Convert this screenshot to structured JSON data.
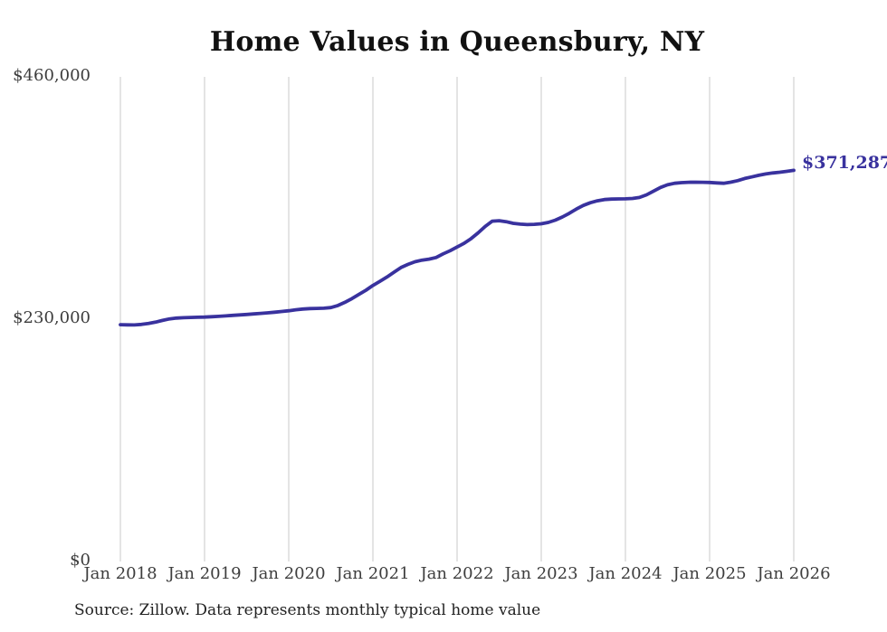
{
  "chart_data": {
    "type": "line",
    "title": "Home Values in Queensbury, NY",
    "xlabel": "",
    "ylabel": "",
    "ylim": [
      0,
      460000
    ],
    "grid": "vertical-only",
    "x_interval": "monthly",
    "x_range": [
      "Jan 2018",
      "Jan 2026"
    ],
    "x_tick_labels": [
      "Jan 2018",
      "Jan 2019",
      "Jan 2020",
      "Jan 2021",
      "Jan 2022",
      "Jan 2023",
      "Jan 2024",
      "Jan 2025",
      "Jan 2026"
    ],
    "y_ticks": [
      {
        "value": 460000,
        "label": "$460,000"
      },
      {
        "value": 230000,
        "label": "$230,000"
      },
      {
        "value": 0,
        "label": "$0"
      }
    ],
    "series": [
      {
        "name": "Typical home value",
        "color": "#39329e",
        "monthly_values": [
          224800,
          224600,
          224500,
          225000,
          226000,
          227200,
          228800,
          230300,
          231000,
          231400,
          231600,
          231800,
          232000,
          232300,
          232700,
          233100,
          233600,
          234000,
          234500,
          235000,
          235500,
          236000,
          236600,
          237300,
          238000,
          238900,
          239600,
          240000,
          240200,
          240400,
          241000,
          243000,
          246000,
          249500,
          253500,
          257500,
          262000,
          266000,
          270000,
          274500,
          279000,
          282000,
          284500,
          286000,
          287000,
          288500,
          292000,
          295000,
          298500,
          302000,
          306500,
          312000,
          318000,
          323000,
          323500,
          322500,
          321000,
          320200,
          319800,
          320000,
          320500,
          321800,
          324000,
          327000,
          330500,
          334500,
          338000,
          340500,
          342300,
          343500,
          344000,
          344100,
          344200,
          344600,
          345500,
          348000,
          351500,
          355000,
          357500,
          359000,
          359600,
          359900,
          360000,
          359900,
          359800,
          359300,
          359000,
          360000,
          361500,
          363500,
          365000,
          366500,
          367800,
          368800,
          369500,
          370300,
          371287
        ]
      }
    ],
    "end_label": "$371,287",
    "end_label_color": "#39329e",
    "source_note": "Source: Zillow. Data represents monthly typical home value"
  }
}
